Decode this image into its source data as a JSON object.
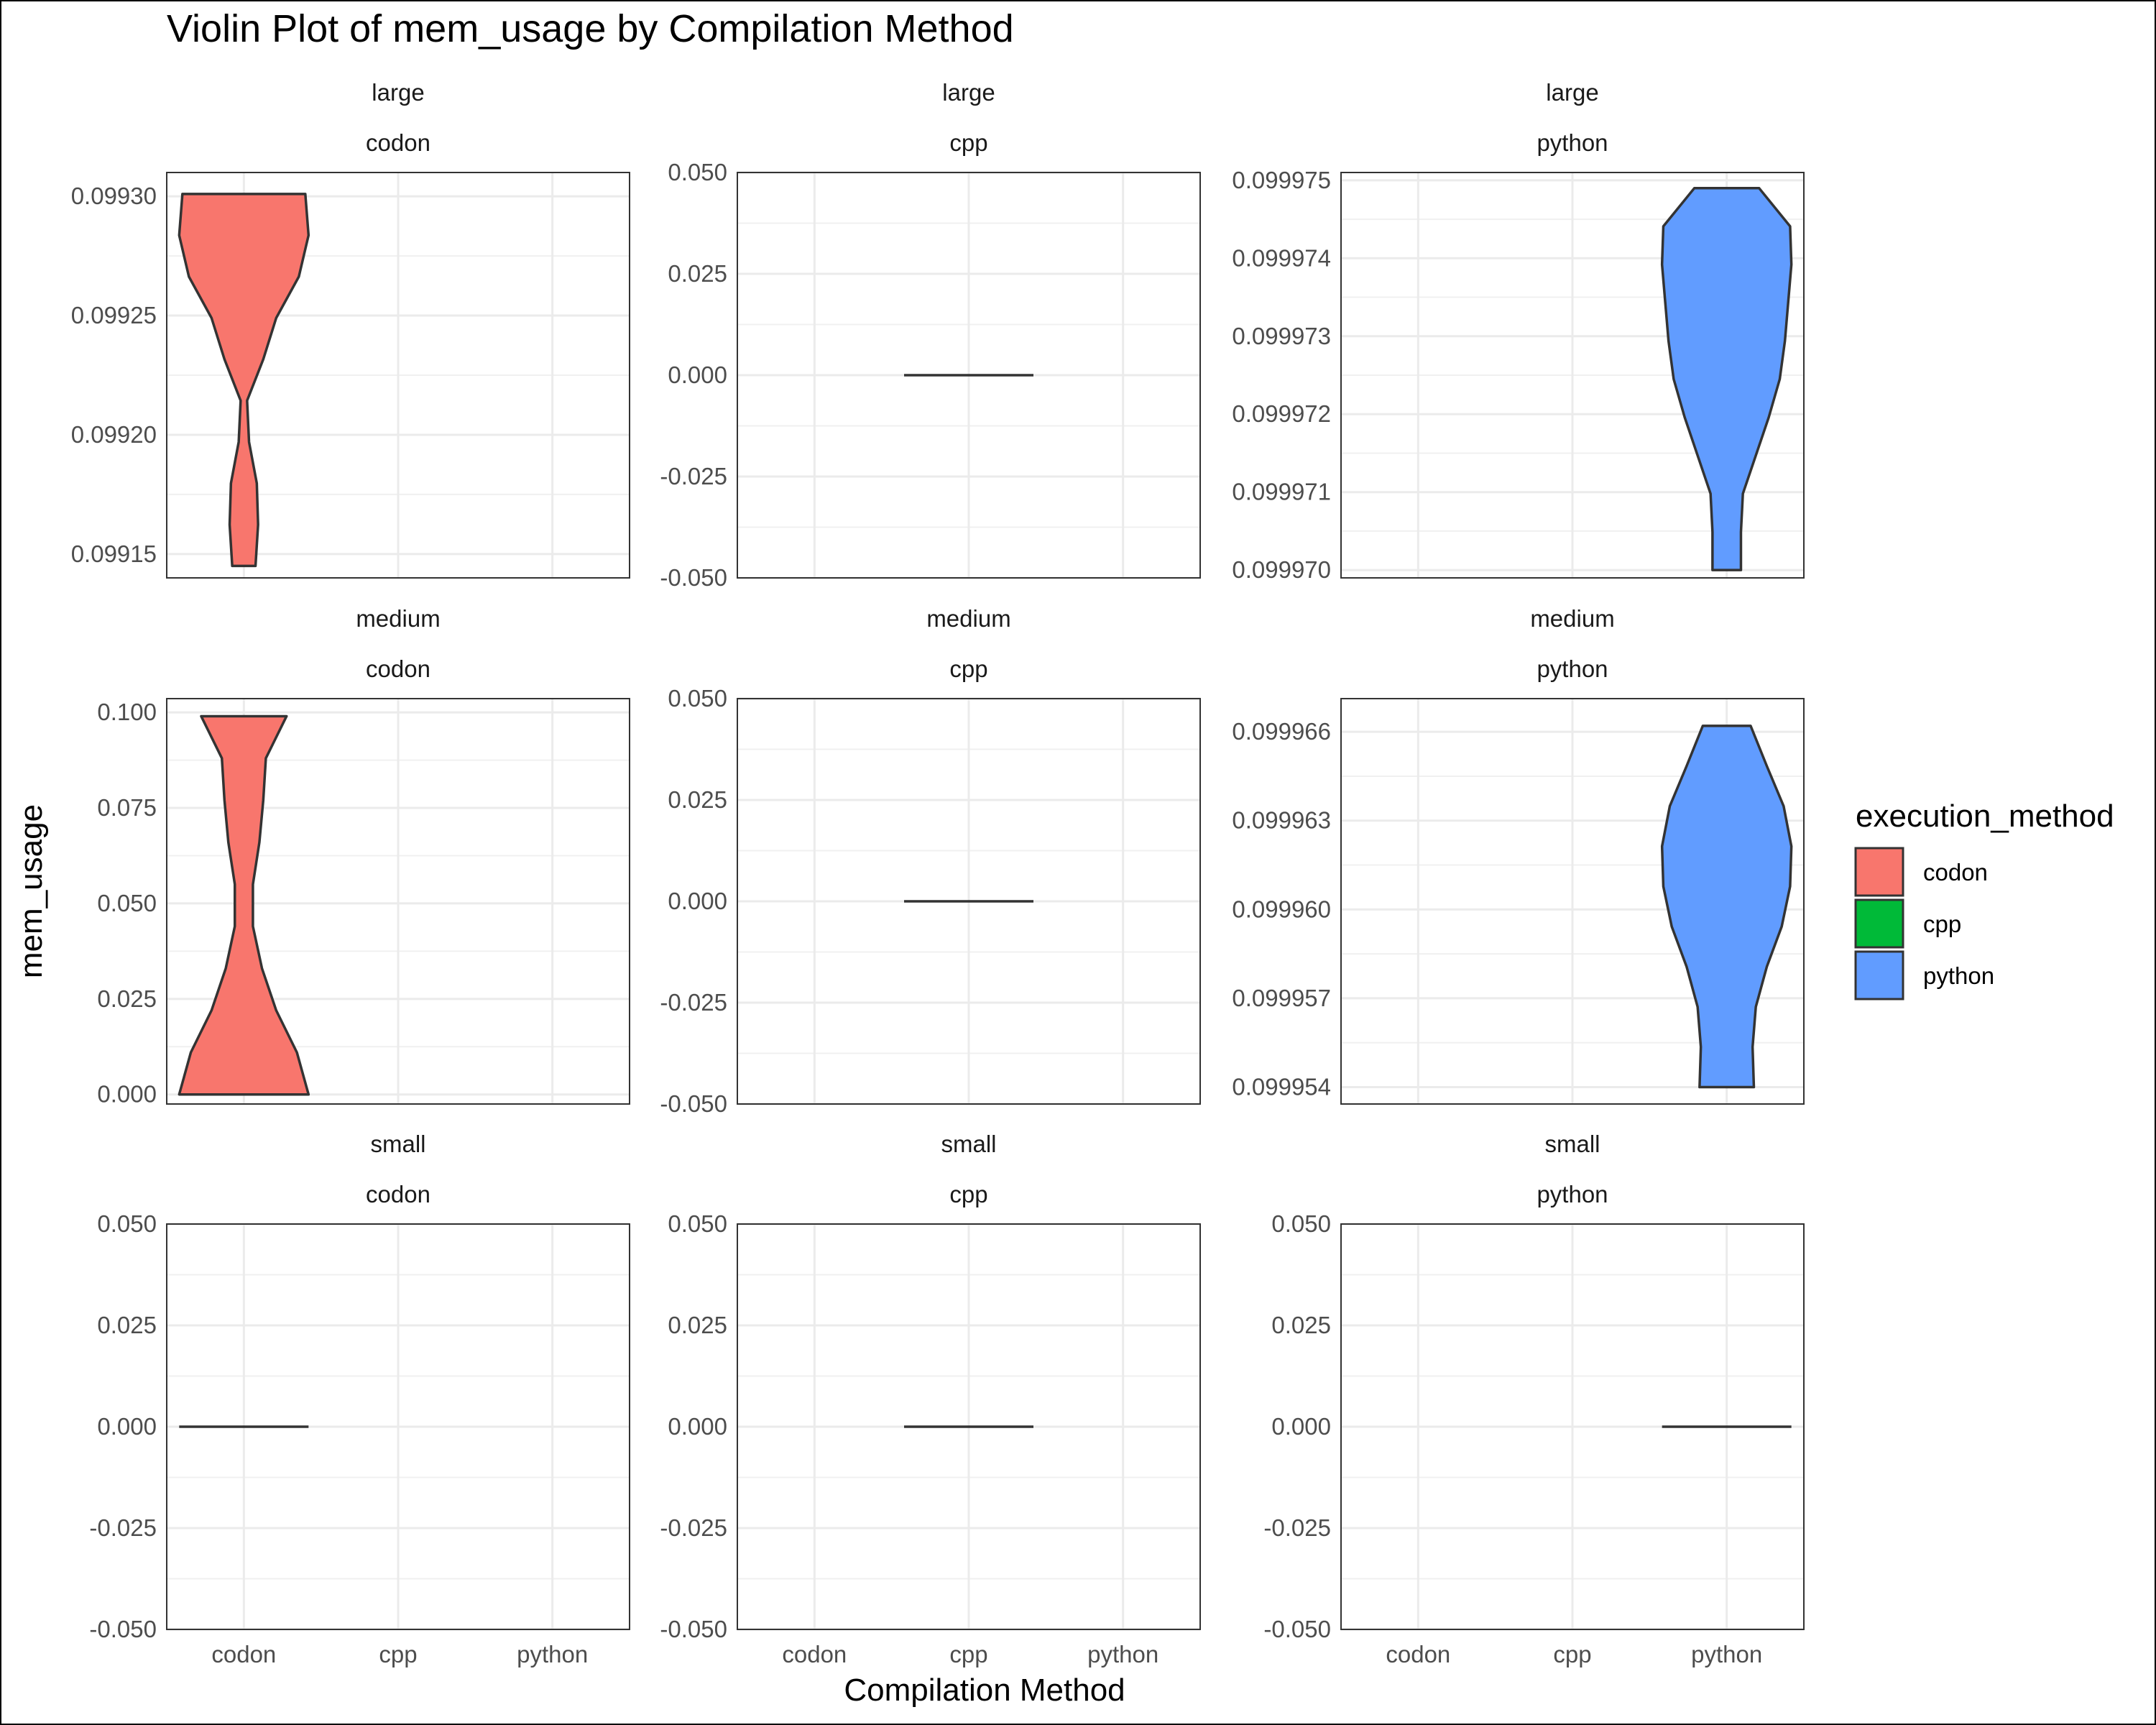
{
  "chart_data": {
    "type": "violin",
    "title": "Violin Plot of mem_usage by Compilation Method",
    "xlabel": "Compilation Method",
    "ylabel": "mem_usage",
    "categories": [
      "codon",
      "cpp",
      "python"
    ],
    "legend": {
      "title": "execution_method",
      "placement": "right",
      "items": [
        {
          "label": "codon",
          "color": "#F8766D"
        },
        {
          "label": "cpp",
          "color": "#00BA38"
        },
        {
          "label": "python",
          "color": "#619CFF"
        }
      ]
    },
    "grid": true,
    "facets": [
      {
        "row": "large",
        "col": "codon",
        "method": "codon",
        "ylim": [
          0.09914,
          0.09931
        ],
        "ticks": [
          0.09915,
          0.0992,
          0.09925,
          0.0993
        ],
        "tick_labels": [
          "0.09915",
          "0.09920",
          "0.09925",
          "0.09930"
        ],
        "y_min": 0.099145,
        "y_max": 0.099301,
        "mid_y": 0.0992,
        "widths": [
          0.18,
          0.22,
          0.2,
          0.08,
          0.05,
          0.3,
          0.5,
          0.85,
          1.0,
          0.95
        ]
      },
      {
        "row": "large",
        "col": "cpp",
        "method": "cpp",
        "ylim": [
          -0.05,
          0.05
        ],
        "ticks": [
          -0.05,
          -0.025,
          0,
          0.025,
          0.05
        ],
        "tick_labels": [
          "-0.050",
          "-0.025",
          "0.000",
          "0.025",
          "0.050"
        ],
        "y_min": 0,
        "y_max": 0,
        "mid_y": 0,
        "widths": []
      },
      {
        "row": "large",
        "col": "python",
        "method": "python",
        "ylim": [
          0.0999699,
          0.0999751
        ],
        "ticks": [
          0.09997,
          0.099971,
          0.099972,
          0.099973,
          0.099974,
          0.099975
        ],
        "tick_labels": [
          "0.099970",
          "0.099971",
          "0.099972",
          "0.099973",
          "0.099974",
          "0.099975"
        ],
        "y_min": 0.09997,
        "y_max": 0.0999749,
        "mid_y": 0.099972,
        "widths": [
          0.22,
          0.22,
          0.25,
          0.45,
          0.65,
          0.82,
          0.9,
          0.95,
          1.0,
          0.98,
          0.5
        ]
      },
      {
        "row": "medium",
        "col": "codon",
        "method": "codon",
        "ylim": [
          -0.0025,
          0.1036
        ],
        "ticks": [
          0,
          0.025,
          0.05,
          0.075,
          0.1
        ],
        "tick_labels": [
          "0.000",
          "0.025",
          "0.050",
          "0.075",
          "0.100"
        ],
        "y_min": 0,
        "y_max": 0.099,
        "mid_y": 0.05,
        "widths": [
          1.0,
          0.82,
          0.5,
          0.28,
          0.14,
          0.14,
          0.24,
          0.3,
          0.34,
          0.66
        ]
      },
      {
        "row": "medium",
        "col": "cpp",
        "method": "cpp",
        "ylim": [
          -0.05,
          0.05
        ],
        "ticks": [
          -0.05,
          -0.025,
          0,
          0.025,
          0.05
        ],
        "tick_labels": [
          "-0.050",
          "-0.025",
          "0.000",
          "0.025",
          "0.050"
        ],
        "y_min": 0,
        "y_max": 0,
        "mid_y": 0,
        "widths": []
      },
      {
        "row": "medium",
        "col": "python",
        "method": "python",
        "ylim": [
          0.09995343,
          0.09996712
        ],
        "ticks": [
          0.099954,
          0.099957,
          0.09996,
          0.099963,
          0.099966
        ],
        "tick_labels": [
          "0.099954",
          "0.099957",
          "0.099960",
          "0.099963",
          "0.099966"
        ],
        "y_min": 0.099954,
        "y_max": 0.0999662,
        "mid_y": 0.09996,
        "widths": [
          0.42,
          0.4,
          0.45,
          0.62,
          0.85,
          0.98,
          1.0,
          0.88,
          0.62,
          0.37
        ]
      },
      {
        "row": "small",
        "col": "codon",
        "method": "codon",
        "ylim": [
          -0.05,
          0.05
        ],
        "ticks": [
          -0.05,
          -0.025,
          0,
          0.025,
          0.05
        ],
        "tick_labels": [
          "-0.050",
          "-0.025",
          "0.000",
          "0.025",
          "0.050"
        ],
        "y_min": 0,
        "y_max": 0,
        "mid_y": 0,
        "widths": []
      },
      {
        "row": "small",
        "col": "cpp",
        "method": "cpp",
        "ylim": [
          -0.05,
          0.05
        ],
        "ticks": [
          -0.05,
          -0.025,
          0,
          0.025,
          0.05
        ],
        "tick_labels": [
          "-0.050",
          "-0.025",
          "0.000",
          "0.025",
          "0.050"
        ],
        "y_min": 0,
        "y_max": 0,
        "mid_y": 0,
        "widths": []
      },
      {
        "row": "small",
        "col": "python",
        "method": "python",
        "ylim": [
          -0.05,
          0.05
        ],
        "ticks": [
          -0.05,
          -0.025,
          0,
          0.025,
          0.05
        ],
        "tick_labels": [
          "-0.050",
          "-0.025",
          "0.000",
          "0.025",
          "0.050"
        ],
        "y_min": 0,
        "y_max": 0,
        "mid_y": 0,
        "widths": []
      }
    ]
  }
}
